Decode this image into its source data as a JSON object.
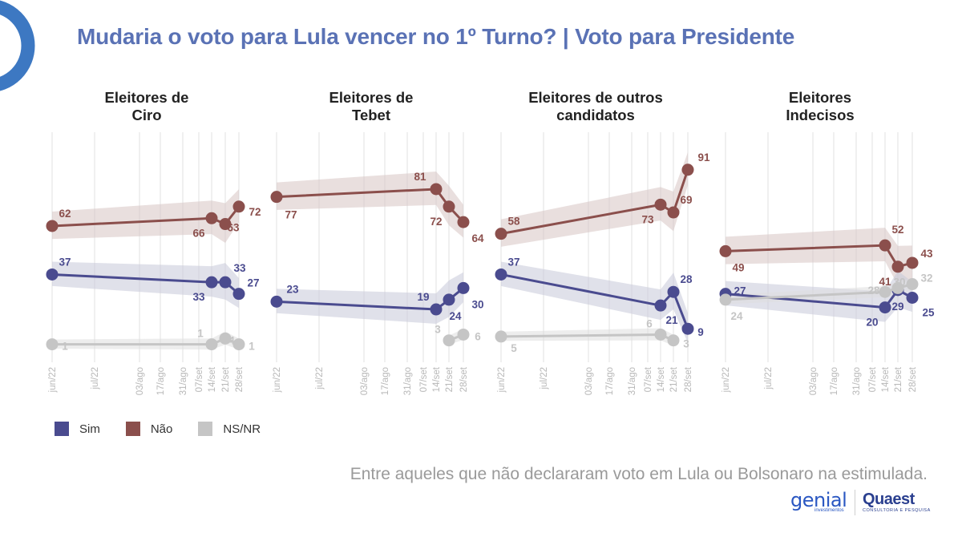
{
  "title": "Mudaria o voto para Lula vencer no 1º Turno? | Voto para Presidente",
  "colors": {
    "sim": "#4a4b8f",
    "nao": "#8b4f4c",
    "nsnr": "#c5c5c5",
    "title": "#5a72b5",
    "accent_arc": "#3d78c2"
  },
  "legend": [
    {
      "key": "sim",
      "label": "Sim"
    },
    {
      "key": "nao",
      "label": "Não"
    },
    {
      "key": "nsnr",
      "label": "NS/NR"
    }
  ],
  "footnote": "Entre aqueles que não declararam voto em Lula ou Bolsonaro na estimulada.",
  "logos": {
    "genial": "genial",
    "genial_sub": "investimentos",
    "quaest": "Quaest",
    "quaest_sub": "CONSULTORIA E PESQUISA"
  },
  "chart_data": [
    {
      "type": "line",
      "title": [
        "Eleitores de",
        "Ciro"
      ],
      "x": [
        "jun/22",
        "jul/22",
        "03/ago",
        "17/ago",
        "31/ago",
        "07/set",
        "14/set",
        "21/set",
        "28/set"
      ],
      "series": [
        {
          "name": "Não",
          "key": "nao",
          "points": [
            [
              0,
              62
            ],
            [
              6,
              66
            ],
            [
              7,
              63
            ],
            [
              8,
              72
            ]
          ]
        },
        {
          "name": "Sim",
          "key": "sim",
          "points": [
            [
              0,
              37
            ],
            [
              6,
              33
            ],
            [
              7,
              33
            ],
            [
              8,
              27
            ]
          ]
        },
        {
          "name": "NS/NR",
          "key": "nsnr",
          "points": [
            [
              0,
              1
            ],
            [
              6,
              1
            ],
            [
              7,
              4
            ],
            [
              8,
              1
            ]
          ]
        }
      ]
    },
    {
      "type": "line",
      "title": [
        "Eleitores de",
        "Tebet"
      ],
      "x": [
        "jun/22",
        "jul/22",
        "03/ago",
        "17/ago",
        "31/ago",
        "07/set",
        "14/set",
        "21/set",
        "28/set"
      ],
      "series": [
        {
          "name": "Não",
          "key": "nao",
          "points": [
            [
              0,
              77
            ],
            [
              6,
              81
            ],
            [
              7,
              72
            ],
            [
              8,
              64
            ]
          ]
        },
        {
          "name": "Sim",
          "key": "sim",
          "points": [
            [
              0,
              23
            ],
            [
              6,
              19
            ],
            [
              7,
              24
            ],
            [
              8,
              30
            ]
          ]
        },
        {
          "name": "NS/NR",
          "key": "nsnr",
          "points": [
            [
              7,
              3
            ],
            [
              8,
              6
            ]
          ]
        }
      ]
    },
    {
      "type": "line",
      "title": [
        "Eleitores de outros",
        "candidatos"
      ],
      "x": [
        "jun/22",
        "jul/22",
        "03/ago",
        "17/ago",
        "31/ago",
        "07/set",
        "14/set",
        "21/set",
        "28/set"
      ],
      "series": [
        {
          "name": "Não",
          "key": "nao",
          "points": [
            [
              0,
              58
            ],
            [
              6,
              73
            ],
            [
              7,
              69
            ],
            [
              8,
              91
            ]
          ]
        },
        {
          "name": "Sim",
          "key": "sim",
          "points": [
            [
              0,
              37
            ],
            [
              6,
              21
            ],
            [
              7,
              28
            ],
            [
              8,
              9
            ]
          ]
        },
        {
          "name": "NS/NR",
          "key": "nsnr",
          "points": [
            [
              0,
              5
            ],
            [
              6,
              6
            ],
            [
              7,
              3
            ]
          ]
        }
      ]
    },
    {
      "type": "line",
      "title": [
        "Eleitores",
        "Indecisos"
      ],
      "x": [
        "jun/22",
        "jul/22",
        "03/ago",
        "17/ago",
        "31/ago",
        "07/set",
        "14/set",
        "21/set",
        "28/set"
      ],
      "series": [
        {
          "name": "Não",
          "key": "nao",
          "points": [
            [
              0,
              49
            ],
            [
              6,
              52
            ],
            [
              7,
              41
            ],
            [
              8,
              43
            ]
          ]
        },
        {
          "name": "Sim",
          "key": "sim",
          "points": [
            [
              0,
              27
            ],
            [
              6,
              20
            ],
            [
              7,
              29
            ],
            [
              8,
              25
            ]
          ]
        },
        {
          "name": "NS/NR",
          "key": "nsnr",
          "points": [
            [
              0,
              24
            ],
            [
              6,
              28
            ],
            [
              7,
              30
            ],
            [
              8,
              32
            ]
          ]
        }
      ]
    }
  ]
}
